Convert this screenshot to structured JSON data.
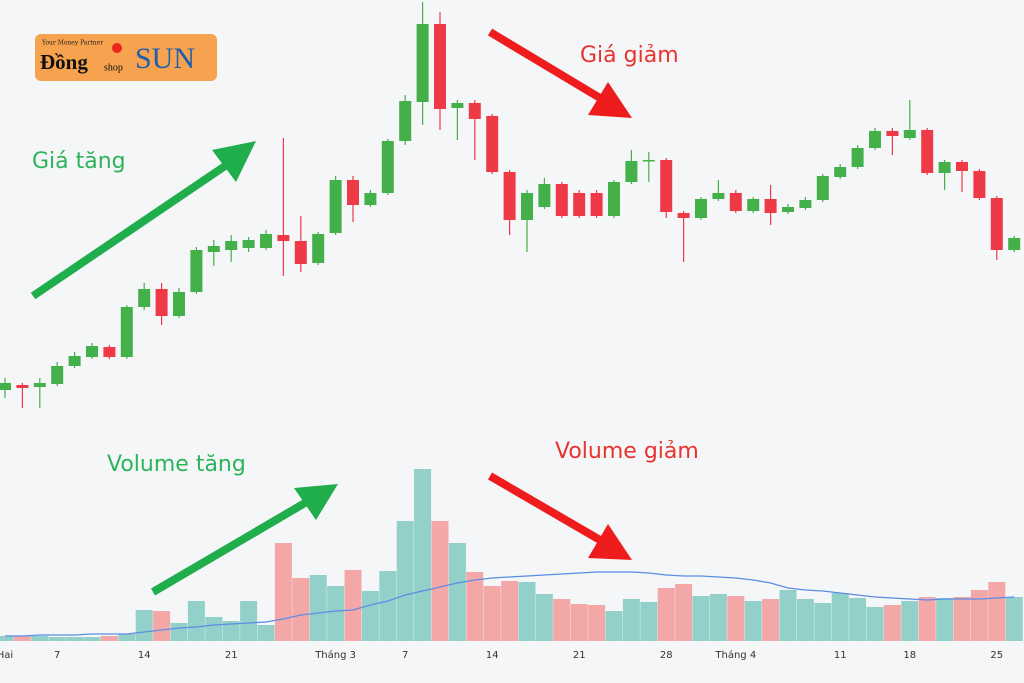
{
  "logo": {
    "tagline": "Your Money Partner",
    "word1": "Đồng",
    "word2": "shop",
    "word3": "SUN"
  },
  "chart_data": {
    "type": "candlestick",
    "categories": [
      "Hai",
      null,
      null,
      "7",
      null,
      null,
      null,
      null,
      "14",
      null,
      null,
      null,
      null,
      "21",
      null,
      null,
      null,
      null,
      null,
      "Tháng 3",
      null,
      null,
      null,
      "7",
      null,
      null,
      null,
      null,
      "14",
      null,
      null,
      null,
      null,
      "21",
      null,
      null,
      null,
      null,
      "28",
      null,
      null,
      null,
      "Tháng 4",
      null,
      null,
      null,
      null,
      null,
      "11",
      null,
      null,
      null,
      "18",
      null,
      null,
      null,
      null,
      "25",
      null
    ],
    "open": [
      60,
      65,
      63,
      66,
      84,
      93,
      103,
      93,
      143,
      161,
      134,
      158,
      198,
      200,
      202,
      202,
      215,
      209,
      187,
      217,
      270,
      245,
      257,
      309,
      348,
      426,
      342,
      347,
      334,
      278,
      230,
      243,
      266,
      257,
      257,
      234,
      268,
      289,
      290,
      237,
      232,
      251,
      257,
      239,
      251,
      238,
      242,
      250,
      273,
      283,
      302,
      319,
      312,
      320,
      277,
      288,
      279,
      252,
      200
    ],
    "high": [
      72,
      67,
      72,
      88,
      98,
      107,
      105,
      145,
      167,
      167,
      162,
      203,
      210,
      215,
      213,
      220,
      312,
      234,
      218,
      274,
      274,
      260,
      311,
      355,
      448,
      438,
      350,
      350,
      336,
      280,
      260,
      272,
      268,
      260,
      260,
      270,
      300,
      298,
      292,
      239,
      253,
      270,
      260,
      253,
      265,
      246,
      253,
      276,
      286,
      305,
      322,
      322,
      350,
      322,
      290,
      290,
      281,
      254,
      214
    ],
    "low": [
      52,
      42,
      42,
      64,
      82,
      91,
      91,
      91,
      140,
      125,
      132,
      156,
      184,
      188,
      198,
      200,
      174,
      178,
      185,
      215,
      228,
      243,
      255,
      305,
      325,
      320,
      310,
      290,
      276,
      215,
      198,
      241,
      232,
      232,
      232,
      232,
      266,
      268,
      232,
      188,
      230,
      249,
      237,
      237,
      225,
      236,
      240,
      248,
      271,
      281,
      300,
      295,
      310,
      275,
      260,
      258,
      250,
      190,
      198
    ],
    "close": [
      67,
      62,
      67,
      84,
      94,
      104,
      93,
      143,
      161,
      134,
      158,
      200,
      204,
      209,
      210,
      216,
      209,
      186,
      216,
      270,
      245,
      257,
      309,
      349,
      426,
      341,
      347,
      331,
      278,
      230,
      257,
      266,
      234,
      234,
      234,
      268,
      289,
      290,
      238,
      232,
      251,
      257,
      239,
      251,
      237,
      243,
      250,
      274,
      283,
      302,
      319,
      314,
      320,
      277,
      288,
      279,
      252,
      200,
      212
    ],
    "up_color": "#43b049",
    "down_color": "#ee3a46",
    "ylim": [
      0,
      450
    ],
    "volume": [
      5,
      5,
      5,
      4,
      4,
      4,
      5,
      7,
      31,
      30,
      18,
      40,
      24,
      20,
      40,
      16,
      98,
      63,
      66,
      55,
      71,
      50,
      70,
      120,
      172,
      120,
      98,
      69,
      55,
      60,
      59,
      47,
      42,
      37,
      36,
      30,
      42,
      39,
      53,
      57,
      45,
      47,
      45,
      40,
      42,
      51,
      42,
      38,
      48,
      43,
      34,
      36,
      40,
      44,
      43,
      44,
      51,
      59,
      44
    ],
    "volume_up_color": "#93d0c9",
    "volume_down_color": "#f4a7a7",
    "volume_ma": [
      5,
      5,
      6,
      6,
      6,
      7,
      7,
      7,
      9,
      11,
      13,
      14,
      16,
      17,
      18,
      19,
      22,
      26,
      28,
      30,
      31,
      36,
      40,
      46,
      50,
      54,
      58,
      61,
      63,
      64,
      65,
      66,
      67,
      68,
      69,
      69,
      69,
      68,
      66,
      65,
      65,
      64,
      63,
      61,
      58,
      53,
      51,
      50,
      48,
      46,
      44,
      43,
      42,
      41,
      42,
      42,
      42,
      43,
      44
    ],
    "ma_color": "#5b8de6",
    "y2lim": [
      0,
      200
    ],
    "annotations": [
      {
        "text": "Giá tăng",
        "color": "#2db45a"
      },
      {
        "text": "Giá giảm",
        "color": "#e8332e"
      },
      {
        "text": "Volume tăng",
        "color": "#2db45a"
      },
      {
        "text": "Volume giảm",
        "color": "#e8332e"
      }
    ]
  }
}
